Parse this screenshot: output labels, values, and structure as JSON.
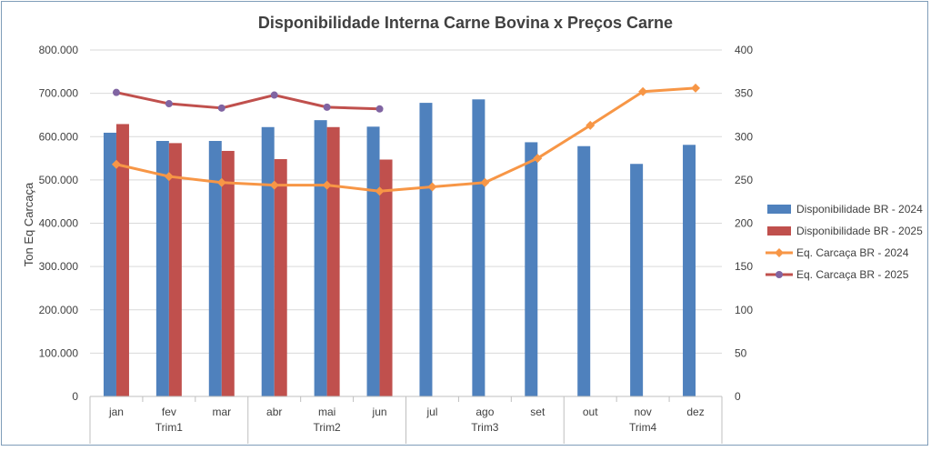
{
  "chart_data": {
    "type": "bar",
    "title": "Disponibilidade Interna Carne Bovina x Preços Carne",
    "ylabel": "Ton Eq Carcaça",
    "y2label": "",
    "ylim": [
      0,
      800000
    ],
    "y2lim": [
      0,
      400
    ],
    "y_ticks": [
      "0",
      "100.000",
      "200.000",
      "300.000",
      "400.000",
      "500.000",
      "600.000",
      "700.000",
      "800.000"
    ],
    "y2_ticks": [
      "0",
      "50",
      "100",
      "150",
      "200",
      "250",
      "300",
      "350",
      "400"
    ],
    "categories": [
      "jan",
      "fev",
      "mar",
      "abr",
      "mai",
      "jun",
      "jul",
      "ago",
      "set",
      "out",
      "nov",
      "dez"
    ],
    "groups": [
      {
        "label": "Trim1",
        "span": 3
      },
      {
        "label": "Trim2",
        "span": 3
      },
      {
        "label": "Trim3",
        "span": 3
      },
      {
        "label": "Trim4",
        "span": 3
      }
    ],
    "grid": true,
    "legend_position": "right",
    "series": [
      {
        "name": "Disponibilidade BR - 2024",
        "kind": "bar",
        "axis": "left",
        "color": "#4f81bd",
        "values": [
          609000,
          590000,
          590000,
          622000,
          638000,
          623000,
          678000,
          686000,
          587000,
          578000,
          537000,
          581000
        ]
      },
      {
        "name": "Disponibilidade BR - 2025",
        "kind": "bar",
        "axis": "left",
        "color": "#c0504d",
        "values": [
          629000,
          585000,
          567000,
          548000,
          622000,
          547000,
          null,
          null,
          null,
          null,
          null,
          null
        ]
      },
      {
        "name": "Eq. Carcaça BR - 2024",
        "kind": "line",
        "axis": "right",
        "color": "#f79646",
        "marker": "diamond",
        "values": [
          268,
          254,
          247,
          244,
          244,
          237,
          242,
          247,
          275,
          313,
          352,
          356
        ]
      },
      {
        "name": "Eq. Carcaça BR - 2025",
        "kind": "line",
        "axis": "right",
        "color": "#c0504d",
        "marker": "circle",
        "marker_color": "#8064a2",
        "values": [
          351,
          338,
          333,
          348,
          334,
          332,
          null,
          null,
          null,
          null,
          null,
          null
        ]
      }
    ]
  }
}
